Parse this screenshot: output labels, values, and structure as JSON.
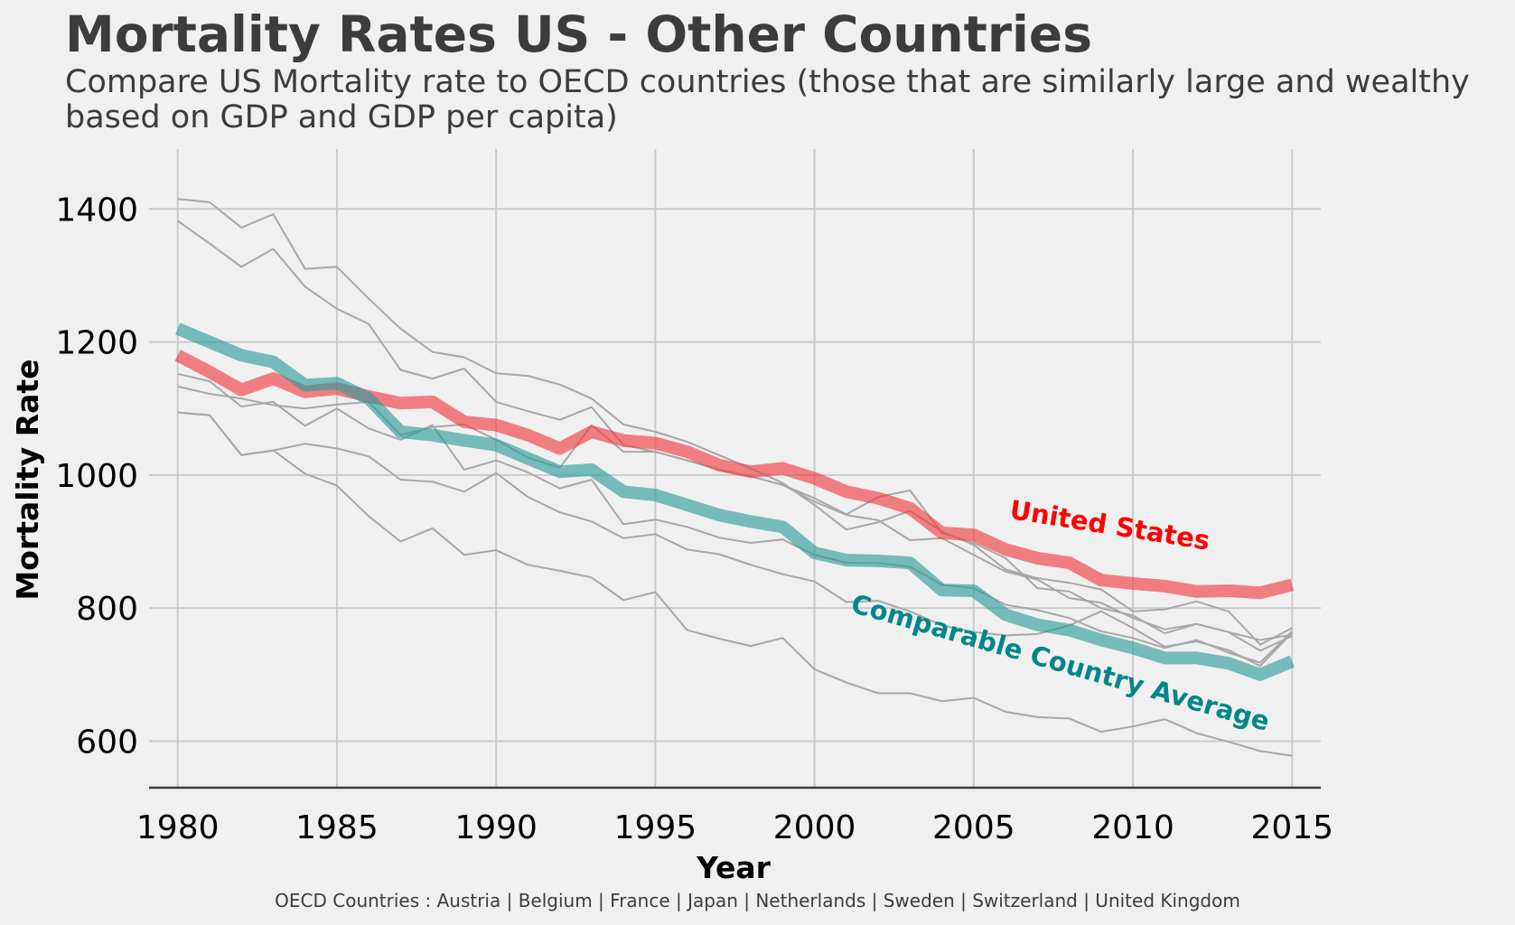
{
  "header": {
    "title": "Mortality Rates US - Other Countries",
    "subtitle": "Compare US Mortality rate to OECD countries (those that are similarly large and wealthy based on GDP and GDP per capita)"
  },
  "footer": {
    "source": "OECD Countries : Austria | Belgium | France | Japan | Netherlands | Sweden | Switzerland | United Kingdom"
  },
  "chart_data": {
    "type": "line",
    "title": "Mortality Rates US - Other Countries",
    "xlabel": "Year",
    "ylabel": "Mortality Rate",
    "xlim": [
      1979.1,
      2015.9
    ],
    "ylim": [
      530,
      1490
    ],
    "xticks": [
      1980,
      1985,
      1990,
      1995,
      2000,
      2005,
      2010,
      2015
    ],
    "yticks": [
      600,
      800,
      1000,
      1200,
      1400
    ],
    "grid": true,
    "colors": {
      "us": "#f0383e",
      "average": "#2a9b9a",
      "countries": "#a8a8a8",
      "us_label": "#ff0000",
      "average_label": "#00878a"
    },
    "x": [
      1980,
      1981,
      1982,
      1983,
      1984,
      1985,
      1986,
      1987,
      1988,
      1989,
      1990,
      1991,
      1992,
      1993,
      1994,
      1995,
      1996,
      1997,
      1998,
      1999,
      2000,
      2001,
      2002,
      2003,
      2004,
      2005,
      2006,
      2007,
      2008,
      2009,
      2010,
      2011,
      2012,
      2013,
      2014,
      2015
    ],
    "annotations": [
      {
        "text": "United States",
        "series": "United States",
        "x": 2006.1,
        "y": 935,
        "angle": 9
      },
      {
        "text": "Comparable Country Average",
        "series": "Comparable Country Average",
        "x": 2001.1,
        "y": 795,
        "angle": 16
      }
    ],
    "series": [
      {
        "name": "United States",
        "role": "highlight",
        "values": [
          1180,
          1155,
          1128,
          1145,
          1125,
          1130,
          1118,
          1108,
          1110,
          1080,
          1075,
          1060,
          1040,
          1065,
          1052,
          1048,
          1035,
          1015,
          1005,
          1010,
          995,
          975,
          965,
          950,
          913,
          910,
          888,
          875,
          868,
          842,
          837,
          833,
          825,
          826,
          823,
          835
        ]
      },
      {
        "name": "Comparable Country Average",
        "role": "highlight",
        "values": [
          1220,
          1200,
          1180,
          1170,
          1135,
          1138,
          1115,
          1065,
          1060,
          1052,
          1045,
          1025,
          1005,
          1008,
          975,
          970,
          955,
          940,
          930,
          922,
          883,
          872,
          871,
          868,
          827,
          826,
          790,
          775,
          767,
          752,
          740,
          725,
          725,
          717,
          700,
          720
        ]
      },
      {
        "role": "country",
        "values": [
          1415,
          1410,
          1372,
          1392,
          1310,
          1313,
          1265,
          1220,
          1185,
          1177,
          1153,
          1149,
          1136,
          1115,
          1076,
          1065,
          1050,
          1030,
          1010,
          988,
          955,
          918,
          929,
          946,
          915,
          895,
          858,
          845,
          838,
          828,
          795,
          798,
          810,
          795,
          745,
          770
        ]
      },
      {
        "role": "country",
        "values": [
          1382,
          1348,
          1313,
          1340,
          1283,
          1250,
          1227,
          1158,
          1145,
          1160,
          1110,
          1096,
          1083,
          1102,
          1045,
          1035,
          1022,
          1008,
          998,
          985,
          965,
          941,
          967,
          977,
          913,
          898,
          875,
          830,
          825,
          800,
          789,
          762,
          776,
          764,
          736,
          758
        ]
      },
      {
        "role": "country",
        "values": [
          1152,
          1141,
          1103,
          1110,
          1074,
          1100,
          1070,
          1053,
          1075,
          1008,
          1022,
          1004,
          980,
          993,
          926,
          933,
          922,
          906,
          898,
          903,
          880,
          868,
          868,
          862,
          835,
          830,
          805,
          797,
          785,
          765,
          755,
          740,
          752,
          733,
          718,
          765
        ]
      },
      {
        "role": "country",
        "values": [
          1133,
          1122,
          1115,
          1105,
          1100,
          1106,
          1110,
          1060,
          1072,
          1076,
          1053,
          1026,
          1011,
          1075,
          1035,
          1035,
          1022,
          1008,
          998,
          985,
          960,
          940,
          932,
          902,
          905,
          880,
          855,
          843,
          815,
          808,
          785,
          768,
          776,
          764,
          752,
          760
        ]
      },
      {
        "role": "country",
        "values": [
          1094,
          1090,
          1030,
          1037,
          1047,
          1040,
          1028,
          993,
          990,
          975,
          1003,
          967,
          944,
          930,
          905,
          911,
          888,
          881,
          865,
          851,
          840,
          809,
          811,
          795,
          774,
          764,
          759,
          761,
          774,
          795,
          770,
          742,
          750,
          737,
          713,
          763
        ]
      },
      {
        "role": "country",
        "values": [
          1094,
          1090,
          1030,
          1037,
          1002,
          984,
          938,
          900,
          920,
          880,
          887,
          865,
          856,
          846,
          812,
          824,
          767,
          754,
          743,
          755,
          708,
          688,
          672,
          672,
          660,
          665,
          644,
          636,
          634,
          614,
          622,
          633,
          612,
          599,
          585,
          578
        ]
      }
    ]
  }
}
